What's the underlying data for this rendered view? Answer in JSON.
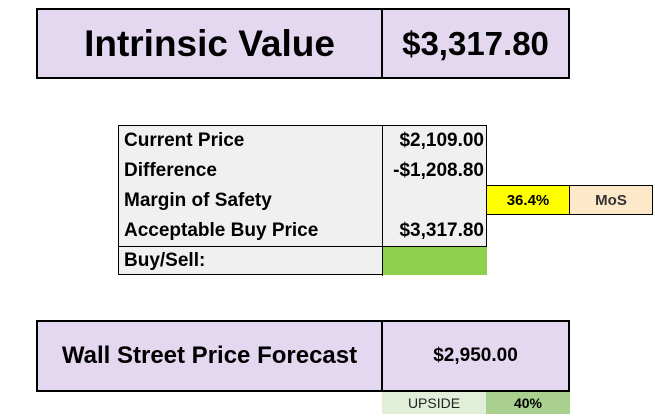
{
  "intrinsic": {
    "label": "Intrinsic Value",
    "value": "$3,317.80"
  },
  "table": {
    "rows": [
      {
        "label": "Current Price",
        "value": "$2,109.00"
      },
      {
        "label": "Difference",
        "value": "-$1,208.80"
      },
      {
        "label": "Margin of Safety",
        "value": ""
      },
      {
        "label": "Acceptable Buy Price",
        "value": "$3,317.80"
      },
      {
        "label": "Buy/Sell:",
        "value": ""
      }
    ]
  },
  "mos": {
    "percent": "36.4%",
    "label": "MoS"
  },
  "forecast": {
    "label": "Wall Street Price Forecast",
    "value": "$2,950.00",
    "upside_label": "UPSIDE",
    "upside_value": "40%"
  },
  "colors": {
    "header_fill": "#e4d7f0",
    "table_fill": "#f0f0f0",
    "buy_sell_signal": "#8fd14f",
    "mos_highlight": "#ffff00",
    "mos_label_fill": "#fde9c9",
    "upside_label_fill": "#e2efd8",
    "upside_value_fill": "#a9d08e"
  }
}
